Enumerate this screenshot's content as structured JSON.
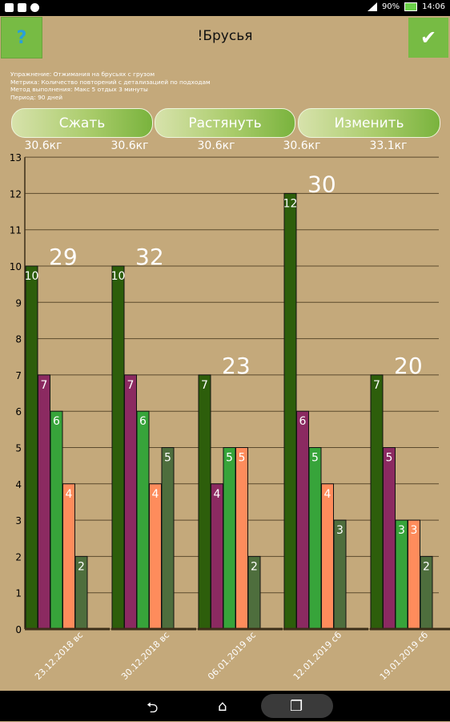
{
  "status": {
    "battery": "90%",
    "time": "14:06"
  },
  "header": {
    "help_label": "?",
    "title": "!Брусья",
    "ok_label": "✔"
  },
  "info": {
    "line1": "Упражнение: Отжимания на брусьях с грузом",
    "line2": "Метрика: Количество повторений с детализацией по подходам",
    "line3": "Метод выполнения: Макс 5 отдых 3 минуты",
    "line4": "Период: 90 дней"
  },
  "buttons": {
    "compress": "Сжать",
    "stretch": "Растянуть",
    "change": "Изменить"
  },
  "colors": {
    "set1": "#2d5e0b",
    "set2": "#8b2a61",
    "set3": "#37a43a",
    "set4": "#fe8c5c",
    "set5": "#4e6e3d"
  },
  "chart_data": {
    "type": "bar",
    "categories": [
      "23.12.2018 вс",
      "30.12.2018 вс",
      "06.01.2019 вс",
      "12.01.2019 сб",
      "19.01.2019 сб"
    ],
    "weights": [
      "30.6кг",
      "30.6кг",
      "30.6кг",
      "30.6кг",
      "33.1кг"
    ],
    "totals": [
      "29",
      "32",
      "23",
      "30",
      "20"
    ],
    "series": [
      {
        "values": [
          10,
          10,
          7,
          12,
          7
        ]
      },
      {
        "values": [
          7,
          7,
          4,
          6,
          5
        ]
      },
      {
        "values": [
          6,
          6,
          5,
          5,
          3
        ]
      },
      {
        "values": [
          4,
          4,
          5,
          4,
          3
        ]
      },
      {
        "values": [
          2,
          5,
          2,
          3,
          2
        ]
      }
    ],
    "yticks": [
      "0",
      "1",
      "2",
      "3",
      "4",
      "5",
      "6",
      "7",
      "8",
      "9",
      "10",
      "11",
      "12",
      "13"
    ],
    "ylim": [
      0,
      13
    ],
    "grid": true
  }
}
